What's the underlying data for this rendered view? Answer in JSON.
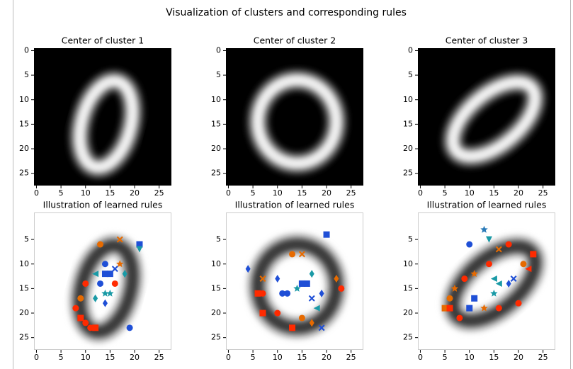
{
  "title": "Visualization of clusters and corresponding rules",
  "chart_data": [
    {
      "type": "image",
      "title": "Center of cluster 1",
      "xlim": [
        -0.5,
        27.5
      ],
      "ylim": [
        27.5,
        -0.5
      ],
      "xticks": [
        0,
        5,
        10,
        15,
        20,
        25
      ],
      "yticks": [
        0,
        5,
        10,
        15,
        20,
        25
      ]
    },
    {
      "type": "image",
      "title": "Center of cluster 2",
      "xlim": [
        -0.5,
        27.5
      ],
      "ylim": [
        27.5,
        -0.5
      ],
      "xticks": [
        0,
        5,
        10,
        15,
        20,
        25
      ],
      "yticks": [
        0,
        5,
        10,
        15,
        20,
        25
      ]
    },
    {
      "type": "image",
      "title": "Center of cluster 3",
      "xlim": [
        -0.5,
        27.5
      ],
      "ylim": [
        27.5,
        -0.5
      ],
      "xticks": [
        0,
        5,
        10,
        15,
        20,
        25
      ],
      "yticks": [
        0,
        5,
        10,
        15,
        20,
        25
      ]
    },
    {
      "type": "scatter",
      "title": "Illustration of learned rules",
      "xlim": [
        -0.5,
        27.5
      ],
      "ylim": [
        27.5,
        -0.5
      ],
      "xticks": [
        0,
        5,
        10,
        15,
        20,
        25
      ],
      "yticks": [
        5,
        10,
        15,
        20,
        25
      ],
      "x": [
        21,
        21,
        17,
        13,
        14,
        15,
        14,
        13,
        14,
        14,
        12,
        9,
        8,
        9,
        10,
        11,
        12,
        19,
        17,
        18,
        16,
        15,
        10,
        16,
        12
      ],
      "y": [
        6,
        7,
        5,
        6,
        10,
        12,
        12,
        14,
        16,
        18,
        17,
        17,
        19,
        21,
        22,
        23,
        23,
        23,
        10,
        12,
        14,
        16,
        14,
        11,
        12
      ],
      "colors": [
        "#1f4fd6",
        "#1a9aa6",
        "#e66a00",
        "#e66a00",
        "#1f4fd6",
        "#1f4fd6",
        "#1f4fd6",
        "#1f4fd6",
        "#1a9aa6",
        "#1f4fd6",
        "#1a9aa6",
        "#e66a00",
        "#ff2a00",
        "#ff2a00",
        "#ff2a00",
        "#ff2a00",
        "#ff2a00",
        "#1f4fd6",
        "#e66a00",
        "#1a9aa6",
        "#ff2a00",
        "#1a9aa6",
        "#ff2a00",
        "#1f4fd6",
        "#1a9aa6"
      ],
      "markers": [
        "s",
        "v",
        "x",
        "o",
        "o",
        "s",
        "s",
        "o",
        "*",
        "d",
        "d",
        "o",
        "o",
        "s",
        "o",
        "o",
        "s",
        "o",
        "*",
        "d",
        "o",
        "*",
        "o",
        "x",
        "<"
      ]
    },
    {
      "type": "scatter",
      "title": "Illustration of learned rules",
      "xlim": [
        -0.5,
        27.5
      ],
      "ylim": [
        27.5,
        -0.5
      ],
      "xticks": [
        0,
        5,
        10,
        15,
        20,
        25
      ],
      "yticks": [
        5,
        10,
        15,
        20,
        25
      ],
      "x": [
        20,
        4,
        7,
        6,
        7,
        7,
        10,
        13,
        15,
        17,
        23,
        22,
        17,
        16,
        15,
        14,
        12,
        11,
        19,
        17,
        19,
        15,
        13,
        10,
        18
      ],
      "y": [
        4,
        11,
        16,
        16,
        13,
        20,
        20,
        23,
        21,
        22,
        15,
        13,
        12,
        14,
        14,
        15,
        16,
        16,
        16,
        17,
        23,
        8,
        8,
        13,
        19
      ],
      "colors": [
        "#1f4fd6",
        "#1f4fd6",
        "#ff2a00",
        "#ff2a00",
        "#e66a00",
        "#ff2a00",
        "#ff2a00",
        "#ff2a00",
        "#e66a00",
        "#e66a00",
        "#ff2a00",
        "#e66a00",
        "#1a9aa6",
        "#1f4fd6",
        "#1f4fd6",
        "#1a9aa6",
        "#1f4fd6",
        "#1f4fd6",
        "#1f4fd6",
        "#1f4fd6",
        "#1f4fd6",
        "#e66a00",
        "#e66a00",
        "#1f4fd6",
        "#1a9aa6"
      ],
      "markers": [
        "s",
        "d",
        "o",
        "s",
        "x",
        "s",
        "o",
        "s",
        "o",
        "d",
        "o",
        "d",
        "d",
        "s",
        "s",
        "*",
        "o",
        "o",
        "d",
        "x",
        "x",
        "x",
        "o",
        "d",
        "<"
      ]
    },
    {
      "type": "scatter",
      "title": "Illustration of learned rules",
      "xlim": [
        -0.5,
        27.5
      ],
      "ylim": [
        27.5,
        -0.5
      ],
      "xticks": [
        0,
        5,
        10,
        15,
        20,
        25
      ],
      "yticks": [
        5,
        10,
        15,
        20,
        25
      ],
      "x": [
        13,
        10,
        14,
        18,
        16,
        14,
        11,
        9,
        7,
        6,
        5,
        6,
        8,
        10,
        11,
        15,
        16,
        18,
        19,
        21,
        22,
        23,
        20,
        16,
        13,
        15
      ],
      "y": [
        3,
        6,
        5,
        6,
        7,
        10,
        12,
        13,
        15,
        17,
        19,
        19,
        21,
        19,
        17,
        16,
        14,
        14,
        13,
        10,
        11,
        8,
        18,
        19,
        19,
        13
      ],
      "colors": [
        "#2a7ab8",
        "#1f4fd6",
        "#1a9aa6",
        "#ff2a00",
        "#e66a00",
        "#ff2a00",
        "#e66a00",
        "#ff2a00",
        "#e66a00",
        "#e66a00",
        "#e66a00",
        "#ff2a00",
        "#ff2a00",
        "#1f4fd6",
        "#1f4fd6",
        "#1a9aa6",
        "#1a9aa6",
        "#1f4fd6",
        "#1f4fd6",
        "#e66a00",
        "#ff2a00",
        "#ff2a00",
        "#ff2a00",
        "#ff2a00",
        "#e66a00",
        "#1a9aa6"
      ],
      "markers": [
        "*",
        "o",
        "v",
        "o",
        "x",
        "o",
        "*",
        "o",
        "*",
        "o",
        "s",
        "s",
        "o",
        "s",
        "s",
        "*",
        "<",
        "d",
        "x",
        "o",
        "<",
        "s",
        "o",
        "o",
        "*",
        "<"
      ]
    }
  ]
}
